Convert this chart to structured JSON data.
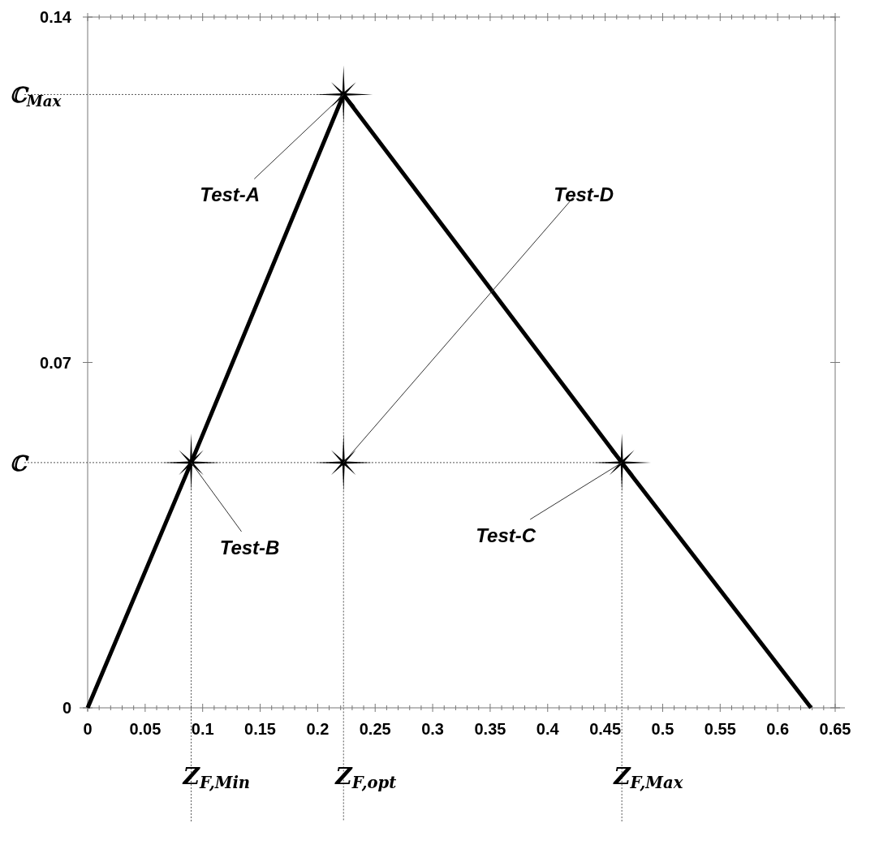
{
  "chart_data": {
    "type": "line",
    "xlim": [
      0,
      0.65
    ],
    "ylim": [
      0,
      0.14
    ],
    "xticks": [
      0,
      0.05,
      0.1,
      0.15,
      0.2,
      0.25,
      0.3,
      0.35,
      0.4,
      0.45,
      0.5,
      0.55,
      0.6,
      0.65,
      {
        "value": 0.01,
        "label": null
      },
      {
        "value": 0.02,
        "label": null
      },
      {
        "value": 0.03,
        "label": null
      },
      {
        "value": 0.04,
        "label": null
      },
      {
        "value": 0.06,
        "label": null
      },
      {
        "value": 0.07,
        "label": null
      },
      {
        "value": 0.08,
        "label": null
      },
      {
        "value": 0.09,
        "label": null
      },
      {
        "value": 0.11,
        "label": null
      },
      {
        "value": 0.12,
        "label": null
      },
      {
        "value": 0.13,
        "label": null
      },
      {
        "value": 0.14,
        "label": null
      },
      {
        "value": 0.16,
        "label": null
      },
      {
        "value": 0.17,
        "label": null
      },
      {
        "value": 0.18,
        "label": null
      },
      {
        "value": 0.19,
        "label": null
      },
      {
        "value": 0.21,
        "label": null
      },
      {
        "value": 0.22,
        "label": null
      },
      {
        "value": 0.23,
        "label": null
      },
      {
        "value": 0.24,
        "label": null
      },
      {
        "value": 0.26,
        "label": null
      },
      {
        "value": 0.27,
        "label": null
      },
      {
        "value": 0.28,
        "label": null
      },
      {
        "value": 0.29,
        "label": null
      },
      {
        "value": 0.31,
        "label": null
      },
      {
        "value": 0.32,
        "label": null
      },
      {
        "value": 0.33,
        "label": null
      },
      {
        "value": 0.34,
        "label": null
      },
      {
        "value": 0.36,
        "label": null
      },
      {
        "value": 0.37,
        "label": null
      },
      {
        "value": 0.38,
        "label": null
      },
      {
        "value": 0.39,
        "label": null
      },
      {
        "value": 0.41,
        "label": null
      },
      {
        "value": 0.42,
        "label": null
      },
      {
        "value": 0.43,
        "label": null
      },
      {
        "value": 0.44,
        "label": null
      },
      {
        "value": 0.46,
        "label": null
      },
      {
        "value": 0.47,
        "label": null
      },
      {
        "value": 0.48,
        "label": null
      },
      {
        "value": 0.49,
        "label": null
      },
      {
        "value": 0.51,
        "label": null
      },
      {
        "value": 0.52,
        "label": null
      },
      {
        "value": 0.53,
        "label": null
      },
      {
        "value": 0.54,
        "label": null
      },
      {
        "value": 0.56,
        "label": null
      },
      {
        "value": 0.57,
        "label": null
      },
      {
        "value": 0.58,
        "label": null
      },
      {
        "value": 0.59,
        "label": null
      },
      {
        "value": 0.61,
        "label": null
      },
      {
        "value": 0.62,
        "label": null
      },
      {
        "value": 0.63,
        "label": null
      },
      {
        "value": 0.64,
        "label": null
      }
    ],
    "yticks": [
      0,
      0.07,
      0.14
    ],
    "series": [
      {
        "color": "#000000",
        "x": [
          0,
          0.09,
          0.2225,
          0.4645,
          0.629
        ],
        "values": [
          0,
          0.0497,
          0.1243,
          0.0497,
          0
        ],
        "marker": "none",
        "line_style": "solid"
      },
      {
        "type": "scatter",
        "color": "#000000",
        "x": [
          0.2225,
          0.09,
          0.4645,
          0.2225
        ],
        "values": [
          0.1243,
          0.0497,
          0.0497,
          0.0497
        ],
        "marker": "star"
      }
    ],
    "ref_lines": [
      {
        "axis": "y",
        "value": 0.1243,
        "label": "ℂ$_{Max}$",
        "line_style": "dotted"
      },
      {
        "axis": "y",
        "value": 0.0497,
        "label": "ℂ",
        "line_style": "dotted"
      },
      {
        "axis": "x",
        "value": 0.09,
        "label": "Z$_{F,Min}$",
        "line_style": "dotted"
      },
      {
        "axis": "x",
        "value": 0.2225,
        "label": "Z$_{F,opt}$",
        "line_style": "dotted"
      },
      {
        "axis": "x",
        "value": 0.4645,
        "label": "Z$_{F,Max}$",
        "line_style": "dotted"
      }
    ],
    "annotations": [
      {
        "text": "Test-A",
        "x": 0.2225,
        "y": 0.1243
      },
      {
        "text": "Test-B",
        "x": 0.09,
        "y": 0.0497
      },
      {
        "text": "Test-C",
        "x": 0.4645,
        "y": 0.0497
      },
      {
        "text": "Test-D",
        "x": 0.2225,
        "y": 0.0497
      }
    ],
    "grid": false
  }
}
